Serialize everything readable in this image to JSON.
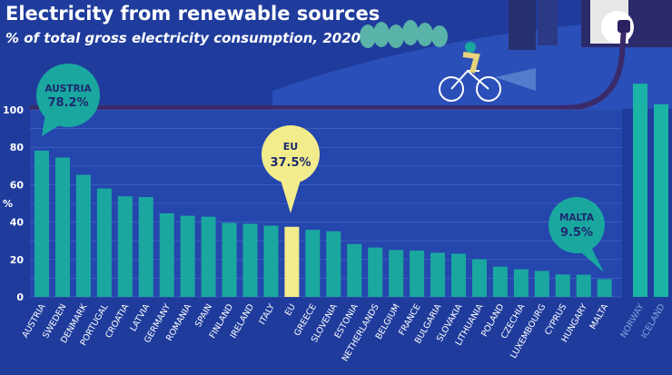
{
  "title": "Electricity from renewable sources",
  "subtitle": "% of total gross electricity consumption, 2020",
  "colors": {
    "background": "#1f3c9c",
    "bar": "#1aa7a0",
    "eu_bar": "#f2ec8c",
    "non_eu_bar": "#1ab3a6",
    "axis_line": "#3a2a6a",
    "label": "#ffffff",
    "non_eu_label": "#7fa7e0"
  },
  "callouts": {
    "austria": {
      "name": "AUSTRIA",
      "value": "78.2%"
    },
    "eu": {
      "name": "EU",
      "value": "37.5%"
    },
    "malta": {
      "name": "MALTA",
      "value": "9.5%"
    }
  },
  "chart_data": {
    "type": "bar",
    "title": "Electricity from renewable sources",
    "subtitle": "% of total gross electricity consumption, 2020",
    "ylabel": "%",
    "ylim": [
      0,
      100
    ],
    "yticks": [
      0,
      20,
      40,
      60,
      80,
      100
    ],
    "grid": true,
    "categories": [
      "AUSTRIA",
      "SWEDEN",
      "DENMARK",
      "PORTUGAL",
      "CROATIA",
      "LATVIA",
      "GERMANY",
      "ROMANIA",
      "SPAIN",
      "FINLAND",
      "IRELAND",
      "ITALY",
      "EU",
      "GREECE",
      "SLOVENIA",
      "ESTONIA",
      "NETHERLANDS",
      "BELGIUM",
      "FRANCE",
      "BULGARIA",
      "SLOVAKIA",
      "LITHUANIA",
      "POLAND",
      "CZECHIA",
      "LUXEMBOURG",
      "CYPRUS",
      "HUNGARY",
      "MALTA"
    ],
    "values": [
      78.2,
      74.5,
      65.3,
      58.0,
      53.8,
      53.4,
      44.7,
      43.4,
      42.9,
      39.6,
      39.1,
      38.1,
      37.5,
      35.9,
      35.1,
      28.3,
      26.4,
      25.1,
      24.8,
      23.6,
      23.1,
      20.2,
      16.2,
      14.8,
      13.9,
      12.0,
      11.9,
      9.5
    ],
    "non_eu_categories": [
      "NORWAY",
      "ICELAND"
    ],
    "non_eu_values": [
      114,
      103
    ],
    "highlight": "EU"
  }
}
